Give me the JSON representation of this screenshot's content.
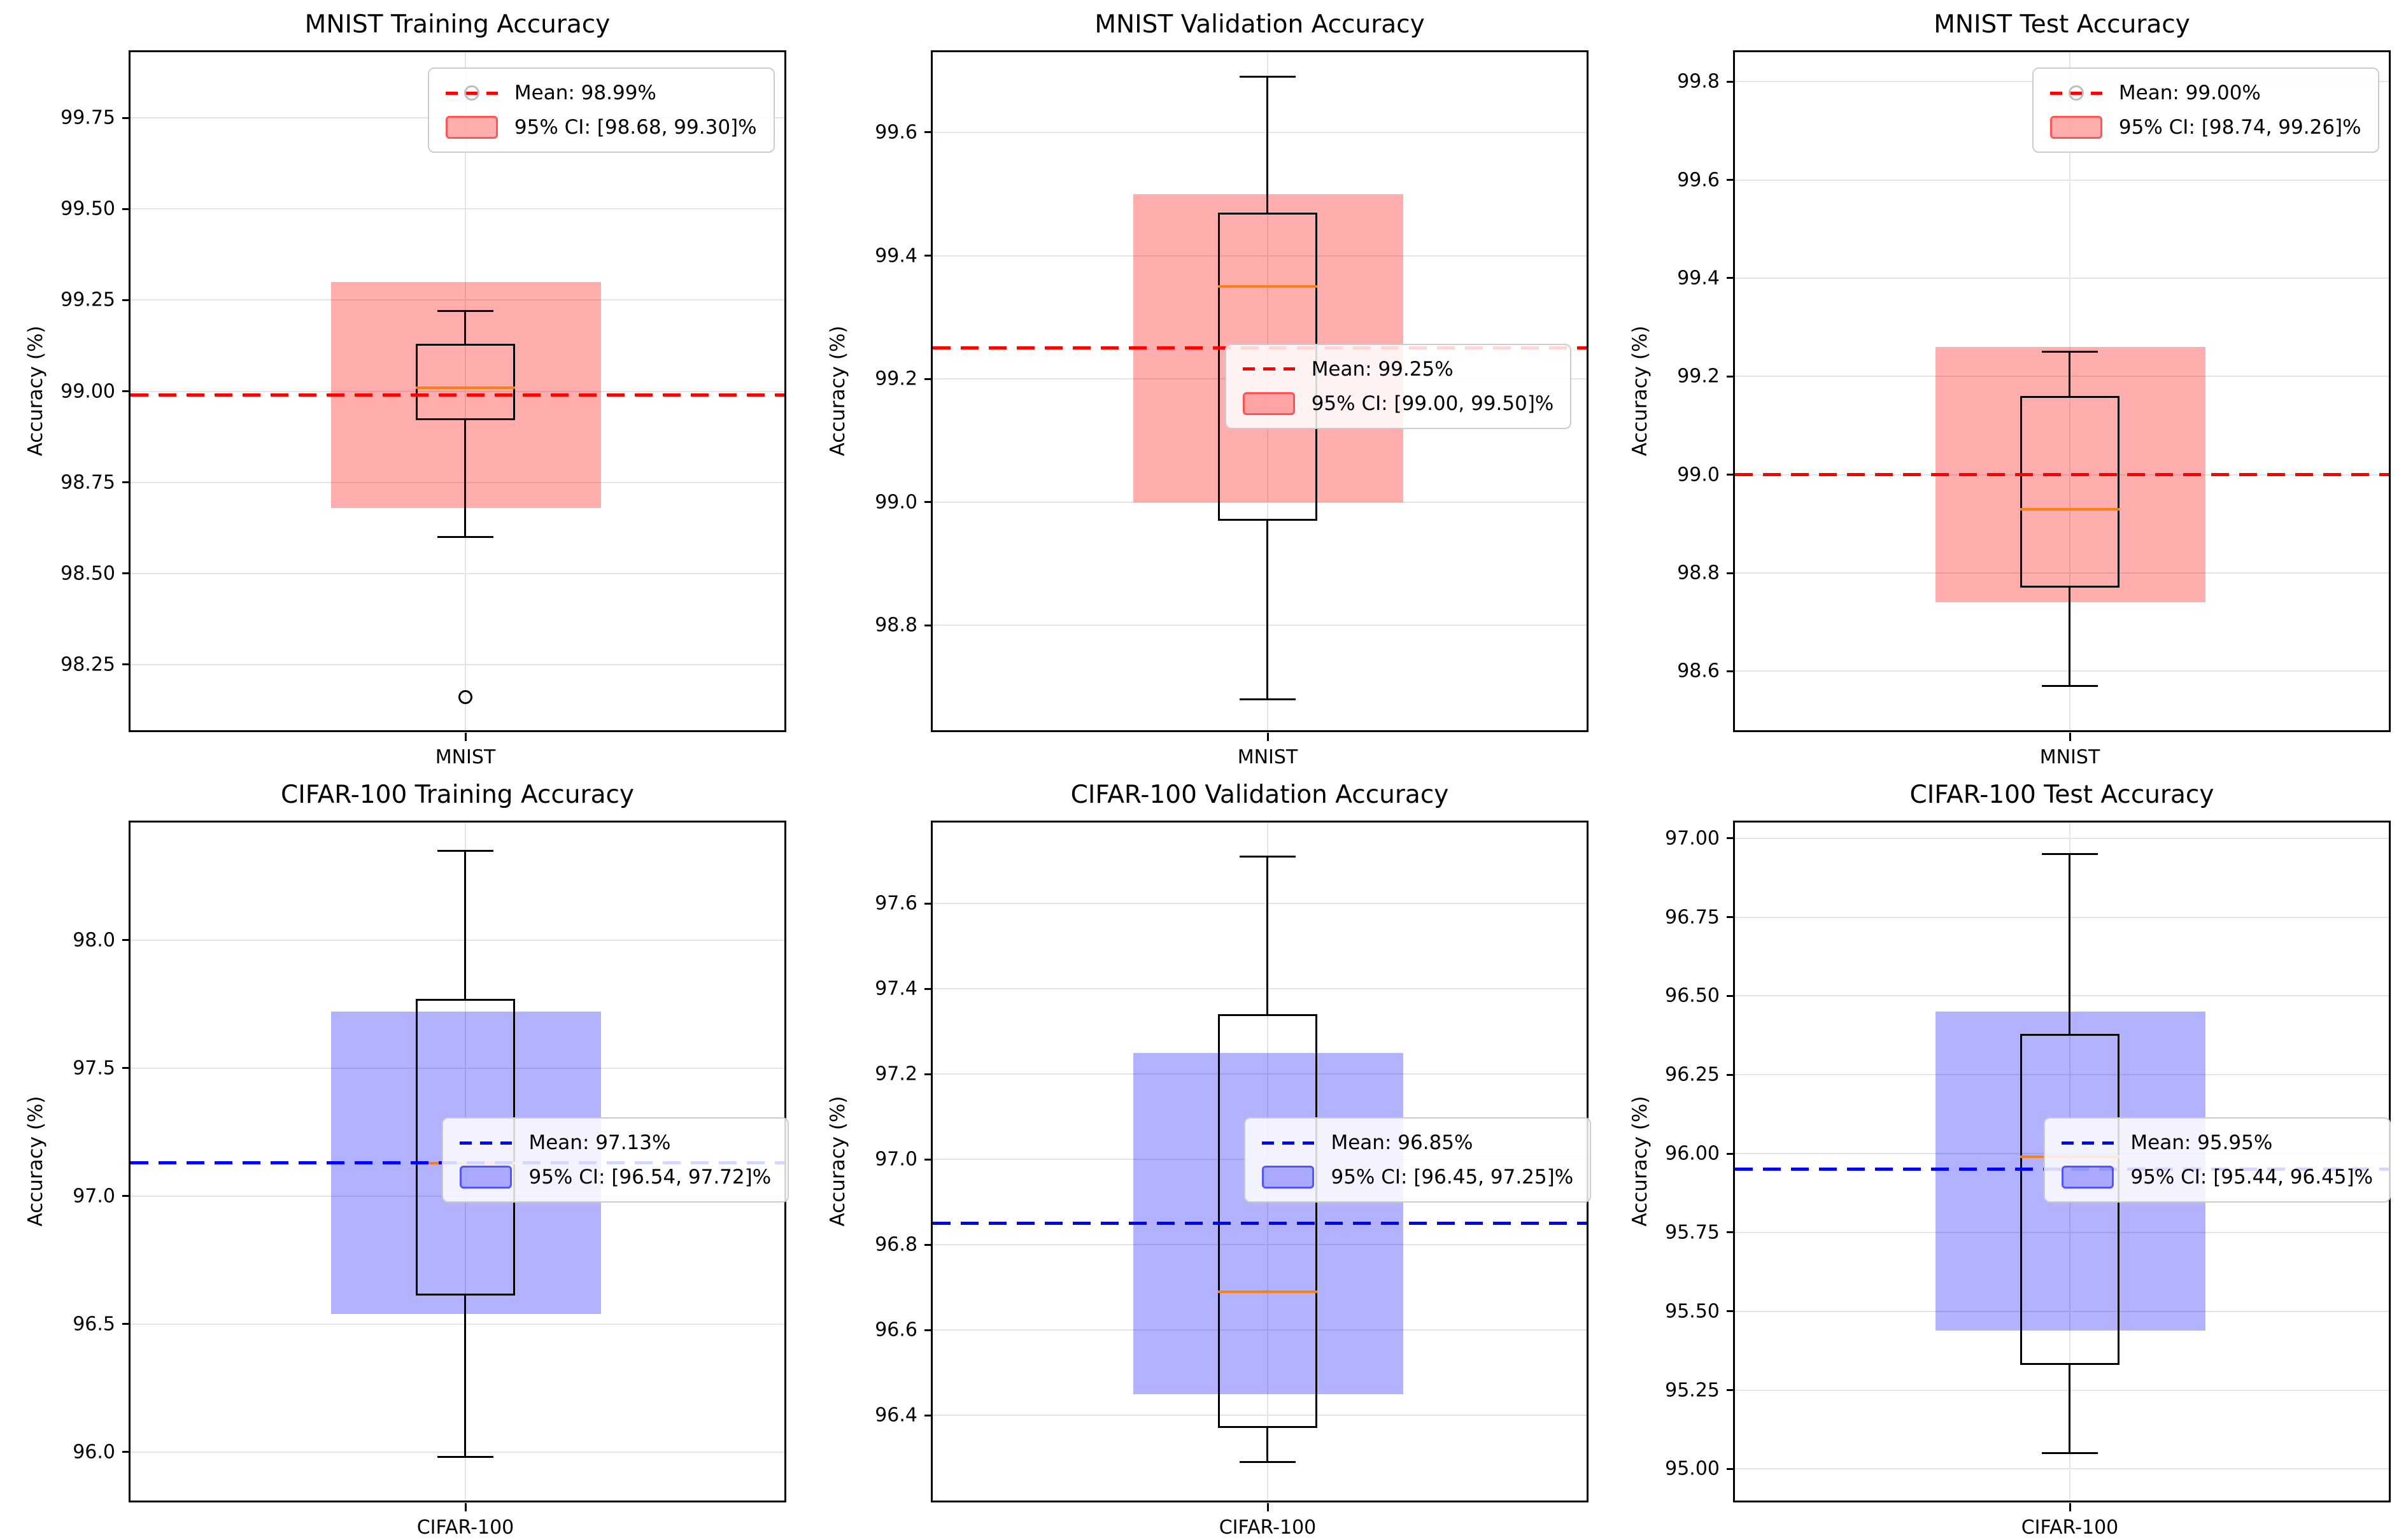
{
  "figure": {
    "background": "#ffffff",
    "rows": 2,
    "cols": 3
  },
  "chart_data": [
    {
      "type": "box",
      "title": "MNIST Training Accuracy",
      "ylabel": "Accuracy (%)",
      "categories": [
        "MNIST"
      ],
      "ylim": [
        98.07,
        99.93
      ],
      "yticks": [
        "98.25",
        "98.50",
        "98.75",
        "99.00",
        "99.25",
        "99.50",
        "99.75"
      ],
      "grid": true,
      "mean": 98.99,
      "ci95": [
        98.68,
        99.3
      ],
      "box": {
        "whisker_low": 98.6,
        "q1": 98.92,
        "median": 99.01,
        "q3": 99.13,
        "whisker_high": 99.22
      },
      "outliers": [
        98.16
      ],
      "legend": {
        "mean_label": "Mean: 98.99%",
        "ci_label": "95% CI: [98.68, 99.30]%",
        "has_circle_marker": true
      },
      "colors": {
        "mean_line": "#ff0000",
        "ci_fill": "rgba(255,0,0,0.32)",
        "ci_edge": "rgba(255,0,0,0.5)",
        "median": "#ff7f0e"
      }
    },
    {
      "type": "box",
      "title": "MNIST Validation Accuracy",
      "ylabel": "Accuracy (%)",
      "categories": [
        "MNIST"
      ],
      "ylim": [
        98.63,
        99.73
      ],
      "yticks": [
        "98.8",
        "99.0",
        "99.2",
        "99.4",
        "99.6"
      ],
      "grid": true,
      "mean": 99.25,
      "ci95": [
        99.0,
        99.5
      ],
      "box": {
        "whisker_low": 98.68,
        "q1": 98.97,
        "median": 99.35,
        "q3": 99.47,
        "whisker_high": 99.69
      },
      "outliers": [],
      "legend": {
        "mean_label": "Mean: 99.25%",
        "ci_label": "95% CI: [99.00, 99.50]%",
        "has_circle_marker": false
      },
      "colors": {
        "mean_line": "#ff0000",
        "ci_fill": "rgba(255,0,0,0.32)",
        "ci_edge": "rgba(255,0,0,0.5)",
        "median": "#ff7f0e"
      }
    },
    {
      "type": "box",
      "title": "MNIST Test Accuracy",
      "ylabel": "Accuracy (%)",
      "categories": [
        "MNIST"
      ],
      "ylim": [
        98.48,
        99.86
      ],
      "yticks": [
        "98.6",
        "98.8",
        "99.0",
        "99.2",
        "99.4",
        "99.6",
        "99.8"
      ],
      "grid": true,
      "mean": 99.0,
      "ci95": [
        98.74,
        99.26
      ],
      "box": {
        "whisker_low": 98.57,
        "q1": 98.77,
        "median": 98.93,
        "q3": 99.16,
        "whisker_high": 99.25
      },
      "outliers": [],
      "legend": {
        "mean_label": "Mean: 99.00%",
        "ci_label": "95% CI: [98.74, 99.26]%",
        "has_circle_marker": true
      },
      "colors": {
        "mean_line": "#ff0000",
        "ci_fill": "rgba(255,0,0,0.32)",
        "ci_edge": "rgba(255,0,0,0.5)",
        "median": "#ff7f0e"
      }
    },
    {
      "type": "box",
      "title": "CIFAR-100 Training Accuracy",
      "ylabel": "Accuracy (%)",
      "categories": [
        "CIFAR-100"
      ],
      "ylim": [
        95.81,
        98.46
      ],
      "yticks": [
        "96.0",
        "96.5",
        "97.0",
        "97.5",
        "98.0"
      ],
      "grid": true,
      "mean": 97.13,
      "ci95": [
        96.54,
        97.72
      ],
      "box": {
        "whisker_low": 95.98,
        "q1": 96.61,
        "median": 97.13,
        "q3": 97.77,
        "whisker_high": 98.35
      },
      "outliers": [],
      "legend": {
        "mean_label": "Mean: 97.13%",
        "ci_label": "95% CI: [96.54, 97.72]%",
        "has_circle_marker": false
      },
      "colors": {
        "mean_line": "#0000ff",
        "ci_fill": "rgba(0,0,255,0.30)",
        "ci_edge": "rgba(0,0,255,0.5)",
        "median": "#ff7f0e"
      }
    },
    {
      "type": "box",
      "title": "CIFAR-100 Validation Accuracy",
      "ylabel": "Accuracy (%)",
      "categories": [
        "CIFAR-100"
      ],
      "ylim": [
        96.2,
        97.79
      ],
      "yticks": [
        "96.4",
        "96.6",
        "96.8",
        "97.0",
        "97.2",
        "97.4",
        "97.6"
      ],
      "grid": true,
      "mean": 96.85,
      "ci95": [
        96.45,
        97.25
      ],
      "box": {
        "whisker_low": 96.29,
        "q1": 96.37,
        "median": 96.69,
        "q3": 97.34,
        "whisker_high": 97.71
      },
      "outliers": [],
      "legend": {
        "mean_label": "Mean: 96.85%",
        "ci_label": "95% CI: [96.45, 97.25]%",
        "has_circle_marker": false
      },
      "colors": {
        "mean_line": "#0000ff",
        "ci_fill": "rgba(0,0,255,0.30)",
        "ci_edge": "rgba(0,0,255,0.5)",
        "median": "#ff7f0e"
      }
    },
    {
      "type": "box",
      "title": "CIFAR-100 Test Accuracy",
      "ylabel": "Accuracy (%)",
      "categories": [
        "CIFAR-100"
      ],
      "ylim": [
        94.9,
        97.05
      ],
      "yticks": [
        "95.00",
        "95.25",
        "95.50",
        "95.75",
        "96.00",
        "96.25",
        "96.50",
        "96.75",
        "97.00"
      ],
      "grid": true,
      "mean": 95.95,
      "ci95": [
        95.44,
        96.45
      ],
      "box": {
        "whisker_low": 95.05,
        "q1": 95.33,
        "median": 95.99,
        "q3": 96.38,
        "whisker_high": 96.95
      },
      "outliers": [],
      "legend": {
        "mean_label": "Mean: 95.95%",
        "ci_label": "95% CI: [95.44, 96.45]%",
        "has_circle_marker": false
      },
      "colors": {
        "mean_line": "#0000ff",
        "ci_fill": "rgba(0,0,255,0.30)",
        "ci_edge": "rgba(0,0,255,0.5)",
        "median": "#ff7f0e"
      }
    }
  ]
}
